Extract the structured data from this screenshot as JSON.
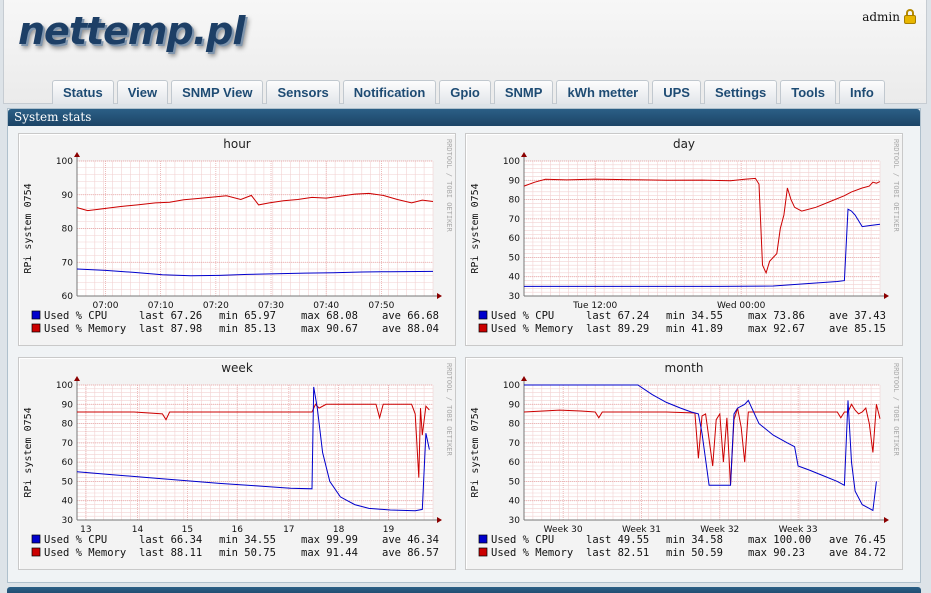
{
  "app": {
    "logo": "nettemp.pl",
    "user": "admin"
  },
  "nav": {
    "tabs": [
      "Status",
      "View",
      "SNMP View",
      "Sensors",
      "Notification",
      "Gpio",
      "SNMP",
      "kWh metter",
      "UPS",
      "Settings",
      "Tools",
      "Info"
    ]
  },
  "panel": {
    "title": "System stats"
  },
  "watermark": "RRDTOOL / TOBI OETIKER",
  "chart_data": [
    {
      "type": "line",
      "title": "hour",
      "ylabel": "RPi system 0754",
      "ylim": [
        60,
        100
      ],
      "yticks": [
        "60",
        "70",
        "80",
        "90",
        "100"
      ],
      "xticks": [
        "07:00",
        "07:10",
        "07:20",
        "07:30",
        "07:40",
        "07:50"
      ],
      "xrange": [
        0,
        100
      ],
      "xtick_pos": [
        8,
        23.5,
        39,
        54.5,
        70,
        85.5
      ],
      "series": [
        {
          "name": "Used % CPU",
          "color": "#0000cc",
          "points": [
            [
              0,
              68.0
            ],
            [
              8,
              67.6
            ],
            [
              16,
              67.0
            ],
            [
              24,
              66.3
            ],
            [
              32,
              66.0
            ],
            [
              40,
              66.1
            ],
            [
              48,
              66.4
            ],
            [
              56,
              66.6
            ],
            [
              64,
              66.8
            ],
            [
              72,
              66.9
            ],
            [
              80,
              67.1
            ],
            [
              88,
              67.2
            ],
            [
              100,
              67.3
            ]
          ],
          "stats": {
            "last": "67.26",
            "min": "65.97",
            "max": "68.08",
            "ave": "66.68"
          }
        },
        {
          "name": "Used % Memory",
          "color": "#cc0000",
          "points": [
            [
              0,
              86.2
            ],
            [
              3,
              85.3
            ],
            [
              7,
              85.8
            ],
            [
              12,
              86.5
            ],
            [
              17,
              87.0
            ],
            [
              22,
              87.6
            ],
            [
              26,
              87.8
            ],
            [
              30,
              88.5
            ],
            [
              34,
              88.9
            ],
            [
              38,
              89.3
            ],
            [
              42,
              89.7
            ],
            [
              46,
              88.6
            ],
            [
              49,
              89.8
            ],
            [
              51,
              87.0
            ],
            [
              54,
              87.6
            ],
            [
              58,
              88.2
            ],
            [
              62,
              88.6
            ],
            [
              66,
              89.2
            ],
            [
              70,
              89.0
            ],
            [
              74,
              89.6
            ],
            [
              78,
              90.2
            ],
            [
              82,
              90.4
            ],
            [
              86,
              89.8
            ],
            [
              90,
              88.6
            ],
            [
              94,
              87.6
            ],
            [
              97,
              88.4
            ],
            [
              100,
              88.0
            ]
          ],
          "stats": {
            "last": "87.98",
            "min": "85.13",
            "max": "90.67",
            "ave": "88.04"
          }
        }
      ]
    },
    {
      "type": "line",
      "title": "day",
      "ylabel": "RPi system 0754",
      "ylim": [
        30,
        100
      ],
      "yticks": [
        "30",
        "40",
        "50",
        "60",
        "70",
        "80",
        "90",
        "100"
      ],
      "xticks": [
        "Tue 12:00",
        "Wed 00:00"
      ],
      "xrange": [
        0,
        100
      ],
      "xtick_pos": [
        20,
        61
      ],
      "series": [
        {
          "name": "Used % CPU",
          "color": "#0000cc",
          "points": [
            [
              0,
              35
            ],
            [
              30,
              35
            ],
            [
              55,
              35
            ],
            [
              70,
              35.2
            ],
            [
              80,
              36.5
            ],
            [
              88,
              37.5
            ],
            [
              90,
              38
            ],
            [
              91,
              75
            ],
            [
              92,
              74
            ],
            [
              93,
              72
            ],
            [
              95,
              66
            ],
            [
              97,
              66.5
            ],
            [
              100,
              67.2
            ]
          ],
          "stats": {
            "last": "67.24",
            "min": "34.55",
            "max": "73.86",
            "ave": "37.43"
          }
        },
        {
          "name": "Used % Memory",
          "color": "#cc0000",
          "points": [
            [
              0,
              87
            ],
            [
              3,
              89
            ],
            [
              6,
              90.5
            ],
            [
              12,
              90.2
            ],
            [
              20,
              90.6
            ],
            [
              30,
              90.3
            ],
            [
              40,
              90.0
            ],
            [
              50,
              90.1
            ],
            [
              58,
              89.8
            ],
            [
              62,
              90.5
            ],
            [
              65,
              91
            ],
            [
              66,
              88
            ],
            [
              67,
              46
            ],
            [
              68,
              42
            ],
            [
              69,
              48
            ],
            [
              71,
              52
            ],
            [
              72,
              65
            ],
            [
              73,
              72
            ],
            [
              74,
              86
            ],
            [
              75,
              80
            ],
            [
              76,
              76
            ],
            [
              78,
              74
            ],
            [
              82,
              76
            ],
            [
              86,
              79
            ],
            [
              90,
              82
            ],
            [
              92,
              84
            ],
            [
              95,
              86
            ],
            [
              97,
              87
            ],
            [
              98,
              89
            ],
            [
              99,
              88.5
            ],
            [
              100,
              89.3
            ]
          ],
          "stats": {
            "last": "89.29",
            "min": "41.89",
            "max": "92.67",
            "ave": "85.15"
          }
        }
      ]
    },
    {
      "type": "line",
      "title": "week",
      "ylabel": "RPi system 0754",
      "ylim": [
        30,
        100
      ],
      "yticks": [
        "30",
        "40",
        "50",
        "60",
        "70",
        "80",
        "90",
        "100"
      ],
      "xticks": [
        "13",
        "14",
        "15",
        "16",
        "17",
        "18",
        "19"
      ],
      "xrange": [
        0,
        100
      ],
      "xtick_pos": [
        2.5,
        17,
        31,
        45,
        59.5,
        73.5,
        87.5
      ],
      "series": [
        {
          "name": "Used % CPU",
          "color": "#0000cc",
          "points": [
            [
              0,
              55
            ],
            [
              10,
              53.5
            ],
            [
              20,
              52
            ],
            [
              30,
              50.5
            ],
            [
              40,
              49
            ],
            [
              50,
              47.8
            ],
            [
              60,
              46.5
            ],
            [
              66,
              46.2
            ],
            [
              66.5,
              99
            ],
            [
              67.5,
              88
            ],
            [
              69,
              65
            ],
            [
              71,
              50
            ],
            [
              74,
              42
            ],
            [
              78,
              38
            ],
            [
              82,
              36
            ],
            [
              88,
              35.2
            ],
            [
              95,
              34.8
            ],
            [
              97,
              35.5
            ],
            [
              98,
              75
            ],
            [
              99,
              66.5
            ]
          ],
          "stats": {
            "last": "66.34",
            "min": "34.55",
            "max": "99.99",
            "ave": "46.34"
          }
        },
        {
          "name": "Used % Memory",
          "color": "#cc0000",
          "points": [
            [
              0,
              86
            ],
            [
              8,
              86
            ],
            [
              16,
              86
            ],
            [
              24,
              85
            ],
            [
              25,
              82
            ],
            [
              26,
              86
            ],
            [
              40,
              86
            ],
            [
              50,
              86
            ],
            [
              60,
              86
            ],
            [
              66,
              86
            ],
            [
              67,
              90
            ],
            [
              68,
              88
            ],
            [
              70,
              90
            ],
            [
              78,
              90
            ],
            [
              84,
              90
            ],
            [
              85,
              83
            ],
            [
              86,
              90
            ],
            [
              90,
              90
            ],
            [
              94,
              90
            ],
            [
              95,
              85
            ],
            [
              96,
              52
            ],
            [
              96.5,
              88
            ],
            [
              97,
              74
            ],
            [
              98,
              89
            ],
            [
              99,
              87
            ]
          ],
          "stats": {
            "last": "88.11",
            "min": "50.75",
            "max": "91.44",
            "ave": "86.57"
          }
        }
      ]
    },
    {
      "type": "line",
      "title": "month",
      "ylabel": "RPi system 0754",
      "ylim": [
        30,
        100
      ],
      "yticks": [
        "30",
        "40",
        "50",
        "60",
        "70",
        "80",
        "90",
        "100"
      ],
      "xticks": [
        "Week 30",
        "Week 31",
        "Week 32",
        "Week 33"
      ],
      "xrange": [
        0,
        100
      ],
      "xtick_pos": [
        11,
        33,
        55,
        77
      ],
      "series": [
        {
          "name": "Used % CPU",
          "color": "#0000cc",
          "points": [
            [
              0,
              100
            ],
            [
              15,
              100
            ],
            [
              32,
              100
            ],
            [
              36,
              95
            ],
            [
              40,
              91
            ],
            [
              44,
              88
            ],
            [
              47,
              86
            ],
            [
              49,
              85
            ],
            [
              50,
              75
            ],
            [
              52,
              48
            ],
            [
              55,
              48
            ],
            [
              58,
              48
            ],
            [
              59,
              85
            ],
            [
              60,
              88
            ],
            [
              62,
              90
            ],
            [
              63,
              92
            ],
            [
              64,
              88
            ],
            [
              66,
              80
            ],
            [
              70,
              74
            ],
            [
              74,
              70
            ],
            [
              76,
              68
            ],
            [
              77,
              58
            ],
            [
              80,
              56
            ],
            [
              84,
              53
            ],
            [
              88,
              50
            ],
            [
              90,
              48
            ],
            [
              91,
              92
            ],
            [
              92,
              60
            ],
            [
              93,
              45
            ],
            [
              95,
              38
            ],
            [
              97,
              36
            ],
            [
              98,
              35
            ],
            [
              99,
              50
            ]
          ],
          "stats": {
            "last": "49.55",
            "min": "34.58",
            "max": "100.00",
            "ave": "76.45"
          }
        },
        {
          "name": "Used % Memory",
          "color": "#cc0000",
          "points": [
            [
              0,
              86
            ],
            [
              10,
              87
            ],
            [
              16,
              86.5
            ],
            [
              20,
              86
            ],
            [
              21,
              83
            ],
            [
              22,
              86
            ],
            [
              30,
              86
            ],
            [
              40,
              86
            ],
            [
              48,
              85.5
            ],
            [
              49,
              62
            ],
            [
              50,
              84
            ],
            [
              51,
              85
            ],
            [
              53,
              58
            ],
            [
              54,
              82
            ],
            [
              55,
              85
            ],
            [
              56,
              60
            ],
            [
              57,
              83
            ],
            [
              58,
              48
            ],
            [
              59,
              82
            ],
            [
              60,
              88
            ],
            [
              61,
              78
            ],
            [
              62,
              60
            ],
            [
              63,
              86
            ],
            [
              68,
              86
            ],
            [
              72,
              86
            ],
            [
              76,
              86
            ],
            [
              80,
              86
            ],
            [
              84,
              86
            ],
            [
              88,
              86
            ],
            [
              89,
              83
            ],
            [
              90,
              86
            ],
            [
              91,
              86
            ],
            [
              92,
              90
            ],
            [
              93,
              87
            ],
            [
              94,
              85
            ],
            [
              95,
              86
            ],
            [
              96,
              88
            ],
            [
              97,
              80
            ],
            [
              98,
              65
            ],
            [
              99,
              90
            ],
            [
              100,
              82.5
            ]
          ],
          "stats": {
            "last": "82.51",
            "min": "50.59",
            "max": "90.23",
            "ave": "84.72"
          }
        }
      ]
    }
  ]
}
